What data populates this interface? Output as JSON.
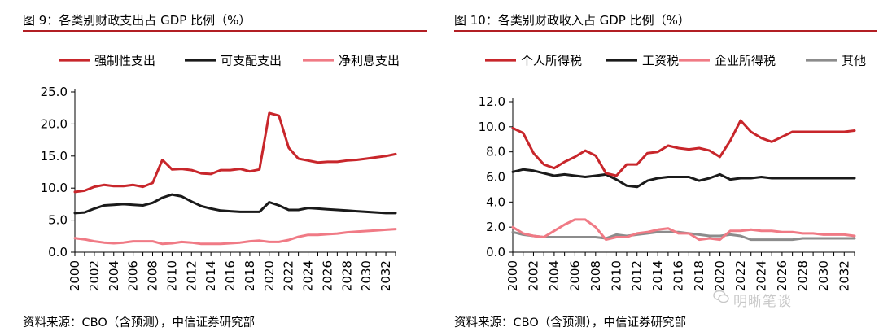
{
  "figures": [
    {
      "title": "图 9：各类别财政支出占 GDP 比例（%）",
      "source": "资料来源：CBO（含预测），中信证券研究部"
    },
    {
      "title": "图 10：各类别财政收入占 GDP 比例（%）",
      "source": "资料来源：CBO（含预测），中信证券研究部"
    }
  ],
  "watermark": "明晰笔谈",
  "chart_data": [
    {
      "type": "line",
      "x": [
        2000,
        2001,
        2002,
        2003,
        2004,
        2005,
        2006,
        2007,
        2008,
        2009,
        2010,
        2011,
        2012,
        2013,
        2014,
        2015,
        2016,
        2017,
        2018,
        2019,
        2020,
        2021,
        2022,
        2023,
        2024,
        2025,
        2026,
        2027,
        2028,
        2029,
        2030,
        2031,
        2032,
        2033
      ],
      "x_tick_labels": [
        "2000",
        "2002",
        "2004",
        "2006",
        "2008",
        "2010",
        "2012",
        "2014",
        "2016",
        "2018",
        "2020",
        "2022",
        "2024",
        "2026",
        "2028",
        "2030",
        "2032"
      ],
      "ylim": [
        0,
        25
      ],
      "y_tick_labels": [
        "0.0",
        "5.0",
        "10.0",
        "15.0",
        "20.0",
        "25.0"
      ],
      "legend_position": "top",
      "series": [
        {
          "name": "强制性支出",
          "color": "#c8262b",
          "values": [
            9.4,
            9.6,
            10.2,
            10.5,
            10.3,
            10.3,
            10.5,
            10.2,
            10.8,
            14.4,
            12.9,
            13.0,
            12.8,
            12.3,
            12.2,
            12.8,
            12.8,
            13.0,
            12.6,
            12.9,
            21.7,
            21.3,
            16.3,
            14.6,
            14.3,
            14.0,
            14.1,
            14.1,
            14.3,
            14.4,
            14.6,
            14.8,
            15.0,
            15.3
          ]
        },
        {
          "name": "可支配支出",
          "color": "#1a1a1a",
          "values": [
            6.1,
            6.2,
            6.8,
            7.3,
            7.4,
            7.5,
            7.4,
            7.3,
            7.7,
            8.5,
            9.0,
            8.7,
            7.9,
            7.2,
            6.8,
            6.5,
            6.4,
            6.3,
            6.3,
            6.3,
            7.8,
            7.3,
            6.6,
            6.6,
            6.9,
            6.8,
            6.7,
            6.6,
            6.5,
            6.4,
            6.3,
            6.2,
            6.1,
            6.1
          ]
        },
        {
          "name": "净利息支出",
          "color": "#f07a85",
          "values": [
            2.2,
            2.0,
            1.7,
            1.5,
            1.4,
            1.5,
            1.7,
            1.7,
            1.7,
            1.3,
            1.4,
            1.6,
            1.5,
            1.3,
            1.3,
            1.3,
            1.4,
            1.5,
            1.7,
            1.8,
            1.6,
            1.6,
            1.9,
            2.4,
            2.7,
            2.7,
            2.8,
            2.9,
            3.1,
            3.2,
            3.3,
            3.4,
            3.5,
            3.6
          ]
        }
      ]
    },
    {
      "type": "line",
      "x": [
        2000,
        2001,
        2002,
        2003,
        2004,
        2005,
        2006,
        2007,
        2008,
        2009,
        2010,
        2011,
        2012,
        2013,
        2014,
        2015,
        2016,
        2017,
        2018,
        2019,
        2020,
        2021,
        2022,
        2023,
        2024,
        2025,
        2026,
        2027,
        2028,
        2029,
        2030,
        2031,
        2032,
        2033
      ],
      "x_tick_labels": [
        "2000",
        "2002",
        "2004",
        "2006",
        "2008",
        "2010",
        "2012",
        "2014",
        "2016",
        "2018",
        "2020",
        "2022",
        "2024",
        "2026",
        "2028",
        "2030",
        "2032"
      ],
      "ylim": [
        0,
        12
      ],
      "y_tick_labels": [
        "0.0",
        "2.0",
        "4.0",
        "6.0",
        "8.0",
        "10.0",
        "12.0"
      ],
      "legend_position": "top",
      "series": [
        {
          "name": "个人所得税",
          "color": "#c8262b",
          "values": [
            9.9,
            9.5,
            7.9,
            7.0,
            6.7,
            7.2,
            7.6,
            8.1,
            7.7,
            6.3,
            6.1,
            7.0,
            7.0,
            7.9,
            8.0,
            8.5,
            8.3,
            8.2,
            8.3,
            8.1,
            7.6,
            8.9,
            10.5,
            9.6,
            9.1,
            8.8,
            9.2,
            9.6,
            9.6,
            9.6,
            9.6,
            9.6,
            9.6,
            9.7
          ]
        },
        {
          "name": "工资税",
          "color": "#1a1a1a",
          "values": [
            6.4,
            6.6,
            6.5,
            6.3,
            6.1,
            6.2,
            6.1,
            6.0,
            6.1,
            6.2,
            5.8,
            5.3,
            5.2,
            5.7,
            5.9,
            6.0,
            6.0,
            6.0,
            5.7,
            5.9,
            6.2,
            5.8,
            5.9,
            5.9,
            6.0,
            5.9,
            5.9,
            5.9,
            5.9,
            5.9,
            5.9,
            5.9,
            5.9,
            5.9
          ]
        },
        {
          "name": "企业所得税",
          "color": "#f07a85",
          "values": [
            2.0,
            1.5,
            1.3,
            1.2,
            1.7,
            2.2,
            2.6,
            2.6,
            2.0,
            1.0,
            1.2,
            1.2,
            1.5,
            1.6,
            1.8,
            1.9,
            1.5,
            1.5,
            1.0,
            1.1,
            1.0,
            1.7,
            1.7,
            1.8,
            1.7,
            1.7,
            1.6,
            1.6,
            1.5,
            1.5,
            1.4,
            1.4,
            1.4,
            1.3
          ]
        },
        {
          "name": "其他",
          "color": "#8c8c8c",
          "values": [
            1.6,
            1.4,
            1.3,
            1.2,
            1.2,
            1.2,
            1.2,
            1.2,
            1.2,
            1.1,
            1.4,
            1.3,
            1.4,
            1.5,
            1.6,
            1.6,
            1.6,
            1.5,
            1.4,
            1.3,
            1.3,
            1.4,
            1.3,
            1.0,
            1.0,
            1.0,
            1.0,
            1.0,
            1.1,
            1.1,
            1.1,
            1.1,
            1.1,
            1.1
          ]
        }
      ]
    }
  ]
}
